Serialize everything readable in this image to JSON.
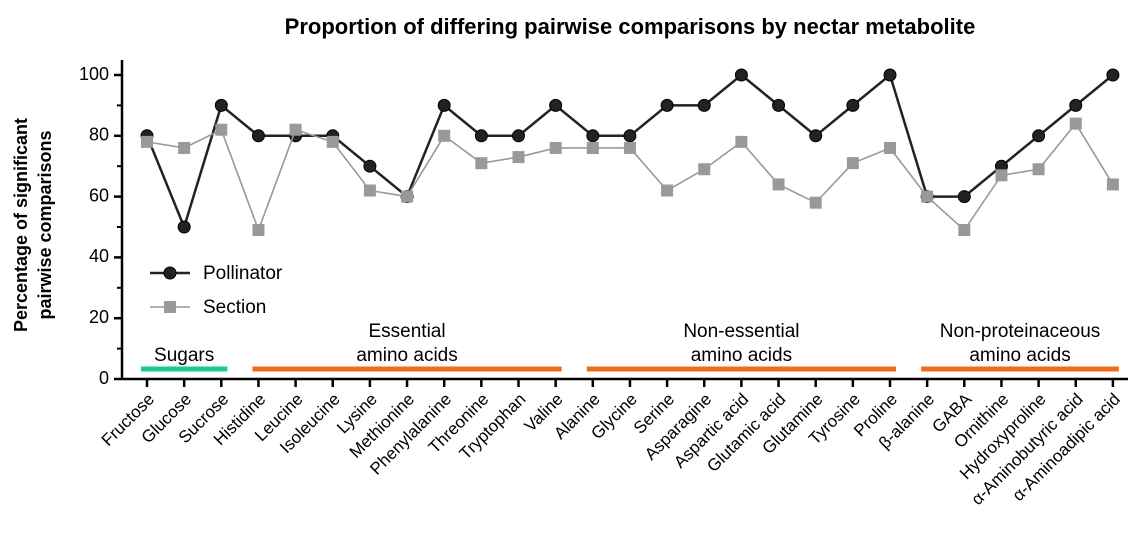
{
  "chart_data": {
    "type": "line",
    "title": "Proportion of differing pairwise comparisons by nectar metabolite",
    "ylabel": [
      "Percentage of significant",
      "pairwise comparisons"
    ],
    "categories": [
      "Fructose",
      "Glucose",
      "Sucrose",
      "Histidine",
      "Leucine",
      "Isoleucine",
      "Lysine",
      "Methionine",
      "Phenylalanine",
      "Threonine",
      "Tryptophan",
      "Valine",
      "Alanine",
      "Glycine",
      "Serine",
      "Asparagine",
      "Aspartic acid",
      "Glutamic acid",
      "Glutamine",
      "Tyrosine",
      "Proline",
      "β-alanine",
      "GABA",
      "Ornithine",
      "Hydroxyproline",
      "α-Aminobutyric acid",
      "α-Aminoadipic acid"
    ],
    "series": [
      {
        "name": "Pollinator",
        "color": "#222222",
        "marker": "circle",
        "values": [
          80,
          50,
          90,
          80,
          80,
          80,
          70,
          60,
          90,
          80,
          80,
          90,
          80,
          80,
          90,
          90,
          100,
          90,
          80,
          90,
          100,
          60,
          60,
          70,
          80,
          90,
          100
        ]
      },
      {
        "name": "Section",
        "color": "#999999",
        "marker": "square",
        "values": [
          78,
          76,
          82,
          49,
          82,
          78,
          62,
          60,
          80,
          71,
          73,
          76,
          76,
          76,
          62,
          69,
          78,
          64,
          58,
          71,
          76,
          60,
          49,
          67,
          69,
          84,
          64
        ]
      }
    ],
    "ylim": [
      0,
      100
    ],
    "yticks": [
      0,
      20,
      40,
      60,
      80,
      100
    ],
    "legend": "lower left",
    "groups": [
      {
        "label": [
          "Sugars"
        ],
        "from": "Fructose",
        "to": "Sucrose",
        "color": "#1fc98f"
      },
      {
        "label": [
          "Essential",
          "amino acids"
        ],
        "from": "Histidine",
        "to": "Valine",
        "color": "#f26b1d"
      },
      {
        "label": [
          "Non-essential",
          "amino acids"
        ],
        "from": "Alanine",
        "to": "Proline",
        "color": "#f26b1d"
      },
      {
        "label": [
          "Non-proteinaceous",
          "amino acids"
        ],
        "from": "β-alanine",
        "to": "α-Aminoadipic acid",
        "color": "#f26b1d"
      }
    ]
  }
}
